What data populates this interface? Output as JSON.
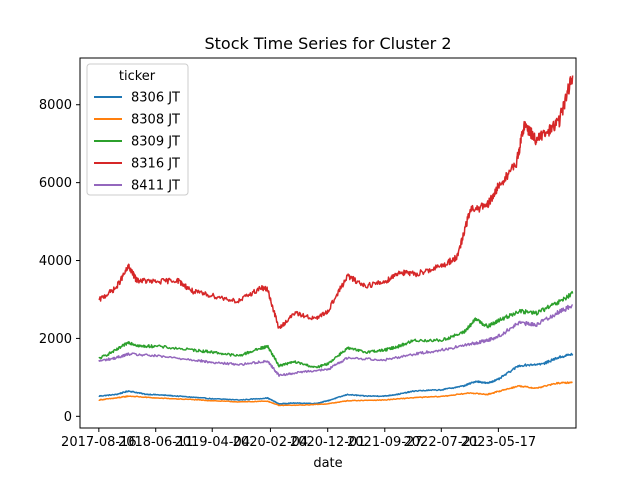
{
  "chart_data": {
    "type": "line",
    "title": "Stock Time Series for Cluster 2",
    "xlabel": "date",
    "ylabel": "",
    "xlim": [
      "2017-05-09",
      "2024-06-28"
    ],
    "ylim": [
      -300,
      9200
    ],
    "x_ticks": [
      "2017-08-16",
      "2018-06-11",
      "2019-04-04",
      "2020-02-04",
      "2020-12-01",
      "2021-09-27",
      "2022-07-21",
      "2023-05-17"
    ],
    "y_ticks": [
      0,
      2000,
      4000,
      6000,
      8000
    ],
    "legend": {
      "title": "ticker",
      "position": "top-left"
    },
    "grid": false,
    "series": [
      {
        "name": "8306 JT",
        "color": "#1f77b4",
        "points": [
          [
            "2017-08-16",
            520
          ],
          [
            "2017-11-15",
            560
          ],
          [
            "2018-01-20",
            650
          ],
          [
            "2018-04-15",
            570
          ],
          [
            "2018-08-01",
            540
          ],
          [
            "2018-12-25",
            490
          ],
          [
            "2019-04-04",
            450
          ],
          [
            "2019-09-01",
            420
          ],
          [
            "2020-01-20",
            470
          ],
          [
            "2020-03-20",
            320
          ],
          [
            "2020-06-01",
            340
          ],
          [
            "2020-10-01",
            330
          ],
          [
            "2020-12-01",
            400
          ],
          [
            "2021-03-15",
            560
          ],
          [
            "2021-06-15",
            520
          ],
          [
            "2021-09-27",
            520
          ],
          [
            "2021-12-10",
            570
          ],
          [
            "2022-03-01",
            650
          ],
          [
            "2022-07-21",
            680
          ],
          [
            "2022-11-15",
            780
          ],
          [
            "2023-01-20",
            900
          ],
          [
            "2023-03-20",
            850
          ],
          [
            "2023-05-17",
            950
          ],
          [
            "2023-09-01",
            1300
          ],
          [
            "2024-01-10",
            1350
          ],
          [
            "2024-03-20",
            1500
          ],
          [
            "2024-06-10",
            1600
          ]
        ]
      },
      {
        "name": "8308 JT",
        "color": "#ff7f0e",
        "points": [
          [
            "2017-08-16",
            420
          ],
          [
            "2017-11-15",
            470
          ],
          [
            "2018-01-20",
            520
          ],
          [
            "2018-06-11",
            470
          ],
          [
            "2018-12-25",
            430
          ],
          [
            "2019-04-04",
            400
          ],
          [
            "2019-09-01",
            370
          ],
          [
            "2020-01-20",
            390
          ],
          [
            "2020-03-20",
            280
          ],
          [
            "2020-08-01",
            290
          ],
          [
            "2020-12-01",
            320
          ],
          [
            "2021-03-15",
            400
          ],
          [
            "2021-09-27",
            420
          ],
          [
            "2022-03-01",
            480
          ],
          [
            "2022-07-21",
            510
          ],
          [
            "2022-12-20",
            600
          ],
          [
            "2023-03-20",
            560
          ],
          [
            "2023-05-17",
            640
          ],
          [
            "2023-09-01",
            780
          ],
          [
            "2023-12-01",
            720
          ],
          [
            "2024-03-20",
            850
          ],
          [
            "2024-06-10",
            870
          ]
        ]
      },
      {
        "name": "8309 JT",
        "color": "#2ca02c",
        "points": [
          [
            "2017-08-16",
            1480
          ],
          [
            "2017-11-15",
            1700
          ],
          [
            "2018-01-20",
            1900
          ],
          [
            "2018-03-20",
            1800
          ],
          [
            "2018-06-11",
            1800
          ],
          [
            "2018-12-25",
            1700
          ],
          [
            "2019-04-04",
            1650
          ],
          [
            "2019-08-20",
            1550
          ],
          [
            "2019-12-15",
            1750
          ],
          [
            "2020-01-20",
            1800
          ],
          [
            "2020-03-20",
            1300
          ],
          [
            "2020-06-10",
            1400
          ],
          [
            "2020-10-01",
            1250
          ],
          [
            "2020-12-01",
            1350
          ],
          [
            "2021-03-15",
            1750
          ],
          [
            "2021-06-15",
            1650
          ],
          [
            "2021-09-27",
            1700
          ],
          [
            "2021-12-10",
            1800
          ],
          [
            "2022-03-01",
            1950
          ],
          [
            "2022-07-21",
            1950
          ],
          [
            "2022-11-15",
            2150
          ],
          [
            "2023-01-20",
            2500
          ],
          [
            "2023-03-20",
            2300
          ],
          [
            "2023-05-17",
            2450
          ],
          [
            "2023-09-01",
            2700
          ],
          [
            "2023-12-01",
            2650
          ],
          [
            "2024-03-20",
            2900
          ],
          [
            "2024-06-10",
            3150
          ]
        ]
      },
      {
        "name": "8316 JT",
        "color": "#d62728",
        "points": [
          [
            "2017-08-16",
            2980
          ],
          [
            "2017-11-15",
            3300
          ],
          [
            "2018-01-20",
            3850
          ],
          [
            "2018-03-01",
            3500
          ],
          [
            "2018-06-11",
            3450
          ],
          [
            "2018-10-01",
            3500
          ],
          [
            "2018-12-25",
            3200
          ],
          [
            "2019-04-04",
            3100
          ],
          [
            "2019-08-20",
            2950
          ],
          [
            "2019-12-15",
            3300
          ],
          [
            "2020-01-20",
            3250
          ],
          [
            "2020-03-20",
            2250
          ],
          [
            "2020-06-10",
            2650
          ],
          [
            "2020-10-01",
            2500
          ],
          [
            "2020-12-01",
            2700
          ],
          [
            "2021-03-15",
            3600
          ],
          [
            "2021-06-15",
            3350
          ],
          [
            "2021-09-27",
            3450
          ],
          [
            "2021-12-10",
            3700
          ],
          [
            "2022-03-01",
            3650
          ],
          [
            "2022-07-21",
            3850
          ],
          [
            "2022-10-15",
            4100
          ],
          [
            "2022-12-20",
            5300
          ],
          [
            "2023-03-20",
            5400
          ],
          [
            "2023-05-17",
            5900
          ],
          [
            "2023-08-20",
            6500
          ],
          [
            "2023-10-01",
            7500
          ],
          [
            "2023-12-01",
            7100
          ],
          [
            "2024-02-01",
            7300
          ],
          [
            "2024-04-01",
            7600
          ],
          [
            "2024-06-10",
            8750
          ]
        ]
      },
      {
        "name": "8411 JT",
        "color": "#9467bd",
        "points": [
          [
            "2017-08-16",
            1420
          ],
          [
            "2017-11-15",
            1500
          ],
          [
            "2018-01-20",
            1600
          ],
          [
            "2018-06-11",
            1550
          ],
          [
            "2018-12-25",
            1450
          ],
          [
            "2019-04-04",
            1380
          ],
          [
            "2019-09-01",
            1330
          ],
          [
            "2020-01-20",
            1420
          ],
          [
            "2020-03-20",
            1050
          ],
          [
            "2020-08-01",
            1150
          ],
          [
            "2020-12-01",
            1200
          ],
          [
            "2021-03-15",
            1500
          ],
          [
            "2021-09-27",
            1450
          ],
          [
            "2022-03-01",
            1600
          ],
          [
            "2022-07-21",
            1700
          ],
          [
            "2022-12-20",
            1850
          ],
          [
            "2023-03-20",
            1950
          ],
          [
            "2023-05-17",
            2050
          ],
          [
            "2023-09-01",
            2400
          ],
          [
            "2023-12-01",
            2350
          ],
          [
            "2024-03-20",
            2650
          ],
          [
            "2024-06-10",
            2850
          ]
        ]
      }
    ]
  }
}
